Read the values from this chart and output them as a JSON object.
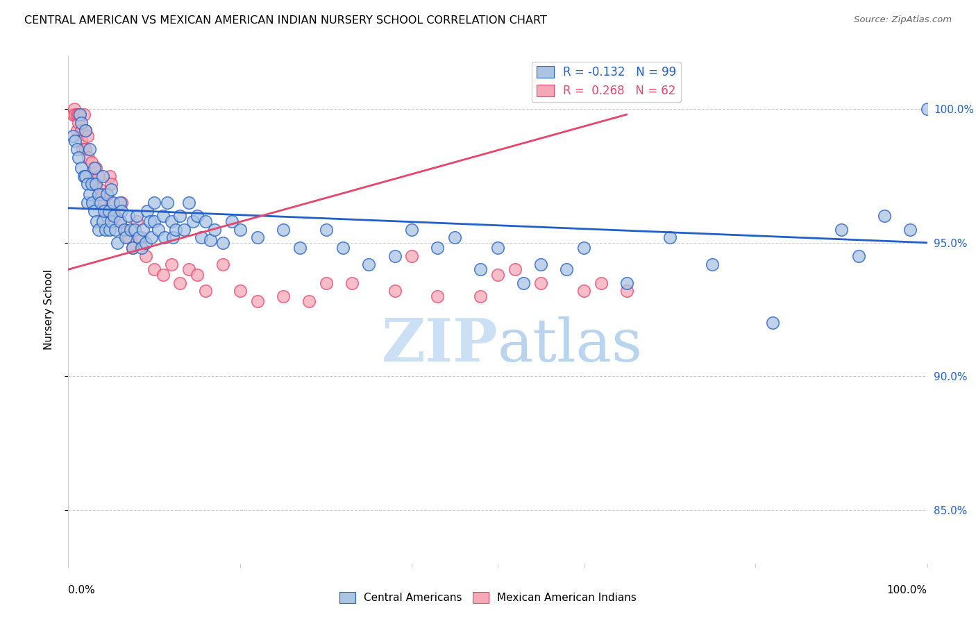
{
  "title": "CENTRAL AMERICAN VS MEXICAN AMERICAN INDIAN NURSERY SCHOOL CORRELATION CHART",
  "source": "Source: ZipAtlas.com",
  "ylabel": "Nursery School",
  "ytick_values": [
    0.85,
    0.9,
    0.95,
    1.0
  ],
  "xmin": 0.0,
  "xmax": 1.0,
  "ymin": 0.83,
  "ymax": 1.02,
  "legend_R_blue": "R = -0.132",
  "legend_N_blue": "N = 99",
  "legend_R_pink": "R =  0.268",
  "legend_N_pink": "N = 62",
  "blue_color": "#aac4e2",
  "pink_color": "#f5a8b8",
  "line_blue_color": "#2060c8",
  "line_pink_color": "#e8456a",
  "watermark_zip": "ZIP",
  "watermark_atlas": "atlas",
  "watermark_color": "#cce0f5",
  "blue_line_x0": 0.0,
  "blue_line_y0": 0.963,
  "blue_line_x1": 1.0,
  "blue_line_y1": 0.95,
  "pink_line_x0": 0.0,
  "pink_line_y0": 0.94,
  "pink_line_x1": 0.65,
  "pink_line_y1": 0.998,
  "blue_scatter_x": [
    0.005,
    0.008,
    0.01,
    0.012,
    0.013,
    0.015,
    0.015,
    0.018,
    0.02,
    0.02,
    0.022,
    0.022,
    0.025,
    0.025,
    0.027,
    0.028,
    0.03,
    0.03,
    0.032,
    0.033,
    0.035,
    0.035,
    0.038,
    0.04,
    0.04,
    0.042,
    0.043,
    0.045,
    0.047,
    0.048,
    0.05,
    0.05,
    0.052,
    0.053,
    0.055,
    0.057,
    0.06,
    0.06,
    0.062,
    0.065,
    0.067,
    0.07,
    0.072,
    0.075,
    0.077,
    0.08,
    0.082,
    0.085,
    0.087,
    0.09,
    0.092,
    0.095,
    0.097,
    0.1,
    0.1,
    0.105,
    0.11,
    0.112,
    0.115,
    0.12,
    0.122,
    0.125,
    0.13,
    0.135,
    0.14,
    0.145,
    0.15,
    0.155,
    0.16,
    0.165,
    0.17,
    0.18,
    0.19,
    0.2,
    0.22,
    0.25,
    0.27,
    0.3,
    0.32,
    0.35,
    0.38,
    0.4,
    0.43,
    0.45,
    0.48,
    0.5,
    0.53,
    0.55,
    0.58,
    0.6,
    0.65,
    0.7,
    0.75,
    0.82,
    0.9,
    0.92,
    0.95,
    0.98,
    1.0
  ],
  "blue_scatter_y": [
    0.99,
    0.988,
    0.985,
    0.982,
    0.998,
    0.995,
    0.978,
    0.975,
    0.992,
    0.975,
    0.972,
    0.965,
    0.985,
    0.968,
    0.972,
    0.965,
    0.978,
    0.962,
    0.972,
    0.958,
    0.968,
    0.955,
    0.965,
    0.975,
    0.958,
    0.962,
    0.955,
    0.968,
    0.962,
    0.955,
    0.97,
    0.958,
    0.965,
    0.96,
    0.955,
    0.95,
    0.965,
    0.958,
    0.962,
    0.955,
    0.952,
    0.96,
    0.955,
    0.948,
    0.955,
    0.96,
    0.952,
    0.948,
    0.955,
    0.95,
    0.962,
    0.958,
    0.952,
    0.965,
    0.958,
    0.955,
    0.96,
    0.952,
    0.965,
    0.958,
    0.952,
    0.955,
    0.96,
    0.955,
    0.965,
    0.958,
    0.96,
    0.952,
    0.958,
    0.951,
    0.955,
    0.95,
    0.958,
    0.955,
    0.952,
    0.955,
    0.948,
    0.955,
    0.948,
    0.942,
    0.945,
    0.955,
    0.948,
    0.952,
    0.94,
    0.948,
    0.935,
    0.942,
    0.94,
    0.948,
    0.935,
    0.952,
    0.942,
    0.92,
    0.955,
    0.945,
    0.96,
    0.955,
    1.0
  ],
  "pink_scatter_x": [
    0.005,
    0.007,
    0.008,
    0.01,
    0.01,
    0.012,
    0.012,
    0.015,
    0.015,
    0.017,
    0.018,
    0.02,
    0.02,
    0.022,
    0.023,
    0.025,
    0.027,
    0.028,
    0.03,
    0.03,
    0.032,
    0.035,
    0.037,
    0.04,
    0.042,
    0.045,
    0.048,
    0.05,
    0.05,
    0.055,
    0.06,
    0.062,
    0.065,
    0.07,
    0.075,
    0.08,
    0.085,
    0.09,
    0.1,
    0.11,
    0.12,
    0.13,
    0.14,
    0.15,
    0.16,
    0.18,
    0.2,
    0.22,
    0.25,
    0.28,
    0.3,
    0.33,
    0.38,
    0.4,
    0.43,
    0.48,
    0.5,
    0.52,
    0.55,
    0.6,
    0.62,
    0.65
  ],
  "pink_scatter_y": [
    0.998,
    1.0,
    0.998,
    0.998,
    0.992,
    0.995,
    0.998,
    0.992,
    0.988,
    0.985,
    0.998,
    0.992,
    0.985,
    0.99,
    0.982,
    0.975,
    0.98,
    0.972,
    0.972,
    0.965,
    0.978,
    0.975,
    0.97,
    0.968,
    0.965,
    0.96,
    0.975,
    0.972,
    0.965,
    0.96,
    0.958,
    0.965,
    0.955,
    0.952,
    0.948,
    0.958,
    0.952,
    0.945,
    0.94,
    0.938,
    0.942,
    0.935,
    0.94,
    0.938,
    0.932,
    0.942,
    0.932,
    0.928,
    0.93,
    0.928,
    0.935,
    0.935,
    0.932,
    0.945,
    0.93,
    0.93,
    0.938,
    0.94,
    0.935,
    0.932,
    0.935,
    0.932
  ]
}
